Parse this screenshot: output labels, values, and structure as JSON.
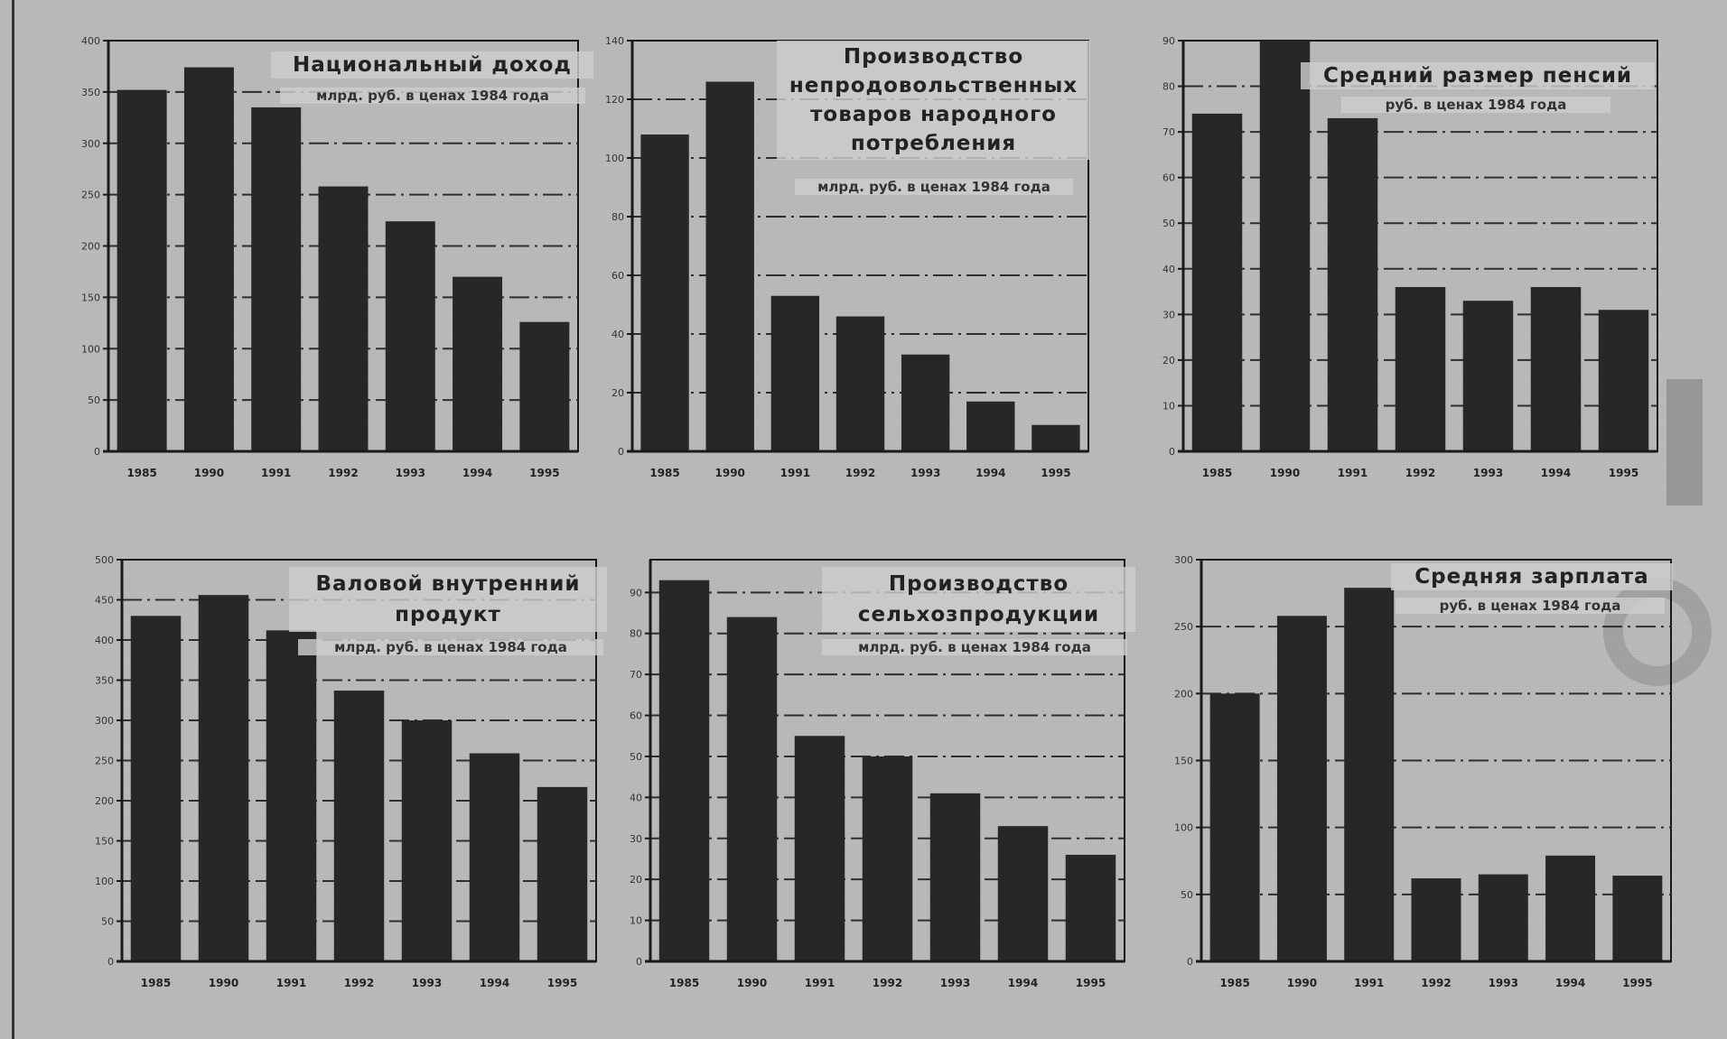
{
  "colors": {
    "paper": "#b9b9b9",
    "bar": "#272727",
    "axis": "#1a1a1a",
    "grid": "#2e2e2e"
  },
  "chart_data": [
    {
      "type": "bar",
      "title": "Национальный доход",
      "subtitle": "млрд. руб. в ценах 1984 года",
      "categories": [
        "1985",
        "1990",
        "1991",
        "1992",
        "1993",
        "1994",
        "1995"
      ],
      "values": [
        352,
        374,
        335,
        258,
        224,
        170,
        126
      ],
      "ylim": [
        0,
        400
      ],
      "yticks": [
        0,
        50,
        100,
        150,
        200,
        250,
        300,
        350,
        400
      ],
      "grid": true
    },
    {
      "type": "bar",
      "title": "Производство непродовольственных товаров народного потребления",
      "subtitle": "млрд. руб. в ценах 1984 года",
      "categories": [
        "1985",
        "1990",
        "1991",
        "1992",
        "1993",
        "1994",
        "1995"
      ],
      "values": [
        108,
        126,
        53,
        46,
        33,
        17,
        9
      ],
      "ylim": [
        0,
        140
      ],
      "yticks": [
        0,
        20,
        40,
        60,
        80,
        100,
        120,
        140
      ],
      "grid": true
    },
    {
      "type": "bar",
      "title": "Средний размер пенсий",
      "subtitle": "руб. в ценах 1984 года",
      "categories": [
        "1985",
        "1990",
        "1991",
        "1992",
        "1993",
        "1994",
        "1995"
      ],
      "values": [
        74,
        90,
        73,
        36,
        33,
        36,
        31
      ],
      "ylim": [
        0,
        90
      ],
      "yticks": [
        0,
        10,
        20,
        30,
        40,
        50,
        60,
        70,
        80,
        90
      ],
      "grid": true
    },
    {
      "type": "bar",
      "title": "Валовой внутренний продукт",
      "subtitle": "млрд. руб. в ценах 1984 года",
      "categories": [
        "1985",
        "1990",
        "1991",
        "1992",
        "1993",
        "1994",
        "1995"
      ],
      "values": [
        430,
        456,
        412,
        337,
        300,
        259,
        217
      ],
      "ylim": [
        0,
        500
      ],
      "yticks": [
        0,
        50,
        100,
        150,
        200,
        250,
        300,
        350,
        400,
        450,
        500
      ],
      "grid": true
    },
    {
      "type": "bar",
      "title": "Производство сельхозпродукции",
      "subtitle": "млрд. руб. в ценах 1984 года",
      "categories": [
        "1985",
        "1990",
        "1991",
        "1992",
        "1993",
        "1994",
        "1995"
      ],
      "values": [
        93,
        84,
        55,
        50,
        41,
        33,
        26
      ],
      "ylim": [
        0,
        98
      ],
      "yticks": [
        0,
        10,
        20,
        30,
        40,
        50,
        60,
        70,
        80,
        90
      ],
      "grid": true
    },
    {
      "type": "bar",
      "title": "Средняя зарплата",
      "subtitle": "руб. в ценах 1984 года",
      "categories": [
        "1985",
        "1990",
        "1991",
        "1992",
        "1993",
        "1994",
        "1995"
      ],
      "values": [
        200,
        258,
        279,
        62,
        65,
        79,
        64
      ],
      "ylim": [
        0,
        300
      ],
      "yticks": [
        0,
        50,
        100,
        150,
        200,
        250,
        300
      ],
      "grid": true
    }
  ]
}
